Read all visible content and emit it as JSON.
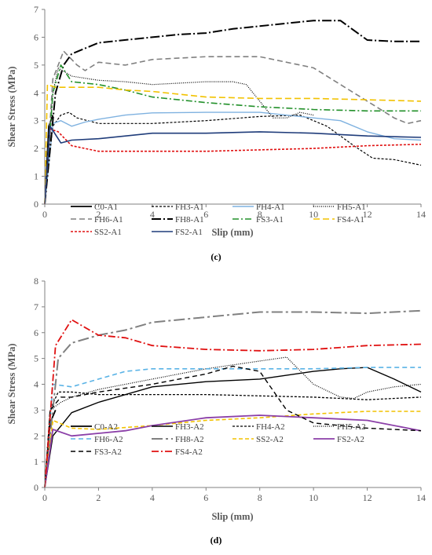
{
  "chart_data": [
    {
      "type": "line",
      "panel": "(c)",
      "xlabel": "Slip (mm)",
      "ylabel": "Shear Stress (MPa)",
      "xlim": [
        0,
        14
      ],
      "ylim": [
        0,
        7
      ],
      "xticks": [
        0,
        2,
        4,
        6,
        8,
        10,
        12,
        14
      ],
      "yticks": [
        0,
        1,
        2,
        3,
        4,
        5,
        6,
        7
      ],
      "grid": false,
      "legend": "bottom",
      "series": [
        {
          "name": "C0-A1",
          "color": "#000000",
          "dash": "",
          "width": 1.8,
          "points": [
            [
              0,
              0
            ],
            [
              0.15,
              2.8
            ],
            [
              0.3,
              3.2
            ]
          ]
        },
        {
          "name": "FH3-A1",
          "color": "#000000",
          "dash": "3,2",
          "width": 1.2,
          "points": [
            [
              0,
              0
            ],
            [
              0.3,
              2.8
            ],
            [
              0.6,
              3.2
            ],
            [
              0.9,
              3.3
            ],
            [
              1.2,
              3.1
            ],
            [
              2,
              2.9
            ],
            [
              4,
              2.9
            ],
            [
              6,
              3.0
            ],
            [
              8,
              3.15
            ],
            [
              9.5,
              3.2
            ],
            [
              10.5,
              2.8
            ],
            [
              11.5,
              2.1
            ],
            [
              12.2,
              1.65
            ],
            [
              13,
              1.6
            ],
            [
              14,
              1.4
            ]
          ]
        },
        {
          "name": "FH4-A1",
          "color": "#7fb2e0",
          "dash": "",
          "width": 1.4,
          "points": [
            [
              0,
              0
            ],
            [
              0.3,
              2.9
            ],
            [
              0.6,
              3.0
            ],
            [
              1,
              2.8
            ],
            [
              1.5,
              2.95
            ],
            [
              2,
              3.05
            ],
            [
              3,
              3.2
            ],
            [
              4,
              3.28
            ],
            [
              6,
              3.3
            ],
            [
              8,
              3.3
            ],
            [
              10,
              3.1
            ],
            [
              11,
              3.0
            ],
            [
              12,
              2.6
            ],
            [
              13,
              2.35
            ],
            [
              14,
              2.3
            ]
          ]
        },
        {
          "name": "FH5-A1",
          "color": "#000000",
          "dash": "1,1.5",
          "width": 1.2,
          "points": [
            [
              0,
              0
            ],
            [
              0.3,
              4.0
            ],
            [
              0.5,
              4.9
            ],
            [
              1,
              4.6
            ],
            [
              2,
              4.45
            ],
            [
              3,
              4.4
            ],
            [
              4,
              4.3
            ],
            [
              5,
              4.35
            ],
            [
              6,
              4.4
            ],
            [
              7,
              4.4
            ],
            [
              7.5,
              4.3
            ],
            [
              8.5,
              3.1
            ],
            [
              9,
              3.1
            ],
            [
              9.5,
              3.3
            ],
            [
              10,
              3.2
            ]
          ]
        },
        {
          "name": "FH6-A1",
          "color": "#808080",
          "dash": "7,4",
          "width": 1.6,
          "points": [
            [
              0,
              0
            ],
            [
              0.3,
              4.5
            ],
            [
              0.7,
              5.5
            ],
            [
              1.2,
              5.0
            ],
            [
              1.5,
              4.8
            ],
            [
              2,
              5.1
            ],
            [
              3,
              5.0
            ],
            [
              4,
              5.2
            ],
            [
              6,
              5.3
            ],
            [
              8,
              5.3
            ],
            [
              10,
              4.9
            ],
            [
              12,
              3.7
            ],
            [
              13,
              3.1
            ],
            [
              13.5,
              2.9
            ],
            [
              14,
              3.0
            ]
          ]
        },
        {
          "name": "FH8-A1",
          "color": "#000000",
          "dash": "12,3,2,3",
          "width": 2,
          "points": [
            [
              0,
              0
            ],
            [
              0.4,
              4.0
            ],
            [
              0.7,
              5.0
            ],
            [
              1,
              5.4
            ],
            [
              2,
              5.8
            ],
            [
              4,
              6.0
            ],
            [
              5,
              6.1
            ],
            [
              6,
              6.15
            ],
            [
              7,
              6.3
            ],
            [
              8,
              6.4
            ],
            [
              9,
              6.5
            ],
            [
              10,
              6.6
            ],
            [
              11,
              6.6
            ],
            [
              12,
              5.9
            ],
            [
              13,
              5.85
            ],
            [
              14,
              5.85
            ]
          ]
        },
        {
          "name": "FS3-A1",
          "color": "#22902a",
          "dash": "8,3,2,3",
          "width": 1.6,
          "points": [
            [
              0,
              0
            ],
            [
              0.3,
              4.0
            ],
            [
              0.6,
              5.0
            ],
            [
              1,
              4.4
            ],
            [
              2,
              4.3
            ],
            [
              3,
              4.1
            ],
            [
              4,
              3.85
            ],
            [
              6,
              3.65
            ],
            [
              8,
              3.5
            ],
            [
              10,
              3.4
            ],
            [
              12,
              3.35
            ],
            [
              14,
              3.35
            ]
          ]
        },
        {
          "name": "FS4-A1",
          "color": "#f2c200",
          "dash": "8,4",
          "width": 1.6,
          "points": [
            [
              0,
              0
            ],
            [
              0.1,
              4.3
            ],
            [
              0.4,
              4.2
            ],
            [
              1,
              4.2
            ],
            [
              2,
              4.2
            ],
            [
              3,
              4.1
            ],
            [
              4,
              4.05
            ],
            [
              6,
              3.85
            ],
            [
              8,
              3.8
            ],
            [
              10,
              3.8
            ],
            [
              12,
              3.75
            ],
            [
              14,
              3.7
            ]
          ]
        },
        {
          "name": "SS2-A1",
          "color": "#e01010",
          "dash": "3,2",
          "width": 1.6,
          "points": [
            [
              0,
              0
            ],
            [
              0.2,
              2.7
            ],
            [
              0.5,
              2.6
            ],
            [
              1,
              2.1
            ],
            [
              2,
              1.9
            ],
            [
              4,
              1.9
            ],
            [
              6,
              1.9
            ],
            [
              8,
              1.95
            ],
            [
              10,
              2.0
            ],
            [
              12,
              2.1
            ],
            [
              14,
              2.15
            ]
          ]
        },
        {
          "name": "FS2-A1",
          "color": "#1f3c7a",
          "dash": "",
          "width": 1.6,
          "points": [
            [
              0,
              0
            ],
            [
              0.2,
              2.8
            ],
            [
              0.6,
              2.2
            ],
            [
              1,
              2.3
            ],
            [
              2,
              2.35
            ],
            [
              4,
              2.55
            ],
            [
              6,
              2.55
            ],
            [
              8,
              2.6
            ],
            [
              10,
              2.55
            ],
            [
              12,
              2.45
            ],
            [
              14,
              2.4
            ]
          ]
        }
      ]
    },
    {
      "type": "line",
      "panel": "(d)",
      "xlabel": "Slip (mm)",
      "ylabel": "Shear Stress (MPa)",
      "xlim": [
        0,
        14
      ],
      "ylim": [
        0,
        8
      ],
      "xticks": [
        0,
        2,
        4,
        6,
        8,
        10,
        12,
        14
      ],
      "yticks": [
        0,
        1,
        2,
        3,
        4,
        5,
        6,
        7,
        8
      ],
      "grid": false,
      "legend": "bottom",
      "series": [
        {
          "name": "C0-A2",
          "color": "#000000",
          "dash": "",
          "width": 1.8,
          "points": [
            [
              0,
              0
            ],
            [
              0.2,
              2.5
            ],
            [
              0.4,
              3.0
            ]
          ]
        },
        {
          "name": "FH3-A2",
          "color": "#000000",
          "dash": "",
          "width": 1.4,
          "points": [
            [
              0,
              0
            ],
            [
              0.3,
              2.0
            ],
            [
              1,
              2.9
            ],
            [
              2,
              3.3
            ],
            [
              4,
              3.9
            ],
            [
              6,
              4.1
            ],
            [
              8,
              4.2
            ],
            [
              10,
              4.5
            ],
            [
              11,
              4.6
            ],
            [
              12,
              4.65
            ],
            [
              13,
              4.2
            ],
            [
              14,
              3.7
            ]
          ]
        },
        {
          "name": "FH4-A2",
          "color": "#000000",
          "dash": "3,2",
          "width": 1.3,
          "points": [
            [
              0,
              0
            ],
            [
              0.2,
              3.0
            ],
            [
              0.5,
              3.7
            ],
            [
              1,
              3.7
            ],
            [
              2,
              3.6
            ],
            [
              4,
              3.6
            ],
            [
              6,
              3.6
            ],
            [
              8,
              3.55
            ],
            [
              10,
              3.5
            ],
            [
              12,
              3.4
            ],
            [
              14,
              3.5
            ]
          ]
        },
        {
          "name": "FH5-A2",
          "color": "#000000",
          "dash": "1,1.5",
          "width": 1.2,
          "points": [
            [
              0,
              0
            ],
            [
              0.2,
              3.0
            ],
            [
              0.6,
              3.3
            ],
            [
              1,
              3.5
            ],
            [
              2,
              3.8
            ],
            [
              4,
              4.2
            ],
            [
              6,
              4.6
            ],
            [
              8,
              4.9
            ],
            [
              9,
              5.05
            ],
            [
              10,
              4.0
            ],
            [
              11,
              3.5
            ],
            [
              11.5,
              3.45
            ],
            [
              12,
              3.7
            ],
            [
              13,
              3.9
            ],
            [
              14,
              4.0
            ]
          ]
        },
        {
          "name": "FH6-A2",
          "color": "#5ab3e6",
          "dash": "6,4",
          "width": 1.6,
          "points": [
            [
              0,
              0
            ],
            [
              0.3,
              4.0
            ],
            [
              1,
              3.9
            ],
            [
              2,
              4.2
            ],
            [
              3,
              4.5
            ],
            [
              4,
              4.6
            ],
            [
              6,
              4.6
            ],
            [
              8,
              4.6
            ],
            [
              10,
              4.6
            ],
            [
              12,
              4.65
            ],
            [
              14,
              4.65
            ]
          ]
        },
        {
          "name": "FH8-A2",
          "color": "#808080",
          "dash": "14,4,3,4",
          "width": 2,
          "points": [
            [
              0,
              0
            ],
            [
              0.5,
              5.0
            ],
            [
              1,
              5.6
            ],
            [
              2,
              5.9
            ],
            [
              3,
              6.1
            ],
            [
              4,
              6.4
            ],
            [
              6,
              6.6
            ],
            [
              7,
              6.7
            ],
            [
              8,
              6.8
            ],
            [
              10,
              6.8
            ],
            [
              12,
              6.75
            ],
            [
              14,
              6.85
            ]
          ]
        },
        {
          "name": "SS2-A2",
          "color": "#f2c200",
          "dash": "5,3",
          "width": 1.6,
          "points": [
            [
              0,
              0
            ],
            [
              0.3,
              2.6
            ],
            [
              1,
              2.3
            ],
            [
              2,
              2.25
            ],
            [
              4,
              2.4
            ],
            [
              6,
              2.6
            ],
            [
              8,
              2.7
            ],
            [
              10,
              2.85
            ],
            [
              12,
              2.95
            ],
            [
              14,
              2.95
            ]
          ]
        },
        {
          "name": "FS2-A2",
          "color": "#8b3fa8",
          "dash": "",
          "width": 1.8,
          "points": [
            [
              0,
              0
            ],
            [
              0.3,
              2.25
            ],
            [
              1,
              2.0
            ],
            [
              2,
              2.1
            ],
            [
              3,
              2.2
            ],
            [
              4,
              2.4
            ],
            [
              6,
              2.7
            ],
            [
              8,
              2.8
            ],
            [
              10,
              2.7
            ],
            [
              12,
              2.6
            ],
            [
              14,
              2.2
            ]
          ]
        },
        {
          "name": "FS3-A2",
          "color": "#000000",
          "dash": "6,4",
          "width": 1.4,
          "points": [
            [
              0,
              0
            ],
            [
              0.2,
              3.0
            ],
            [
              0.6,
              3.5
            ],
            [
              1,
              3.5
            ],
            [
              2,
              3.7
            ],
            [
              4,
              4.0
            ],
            [
              6,
              4.4
            ],
            [
              7,
              4.7
            ],
            [
              8,
              4.5
            ],
            [
              9,
              3.0
            ],
            [
              10,
              2.5
            ],
            [
              12,
              2.3
            ],
            [
              14,
              2.2
            ]
          ]
        },
        {
          "name": "FS4-A2",
          "color": "#e01010",
          "dash": "9,3,2,3",
          "width": 1.8,
          "points": [
            [
              0,
              0
            ],
            [
              0.4,
              5.5
            ],
            [
              1,
              6.5
            ],
            [
              1.5,
              6.2
            ],
            [
              2,
              5.9
            ],
            [
              3,
              5.8
            ],
            [
              4,
              5.5
            ],
            [
              6,
              5.35
            ],
            [
              8,
              5.3
            ],
            [
              10,
              5.35
            ],
            [
              12,
              5.5
            ],
            [
              14,
              5.55
            ]
          ]
        }
      ]
    }
  ]
}
